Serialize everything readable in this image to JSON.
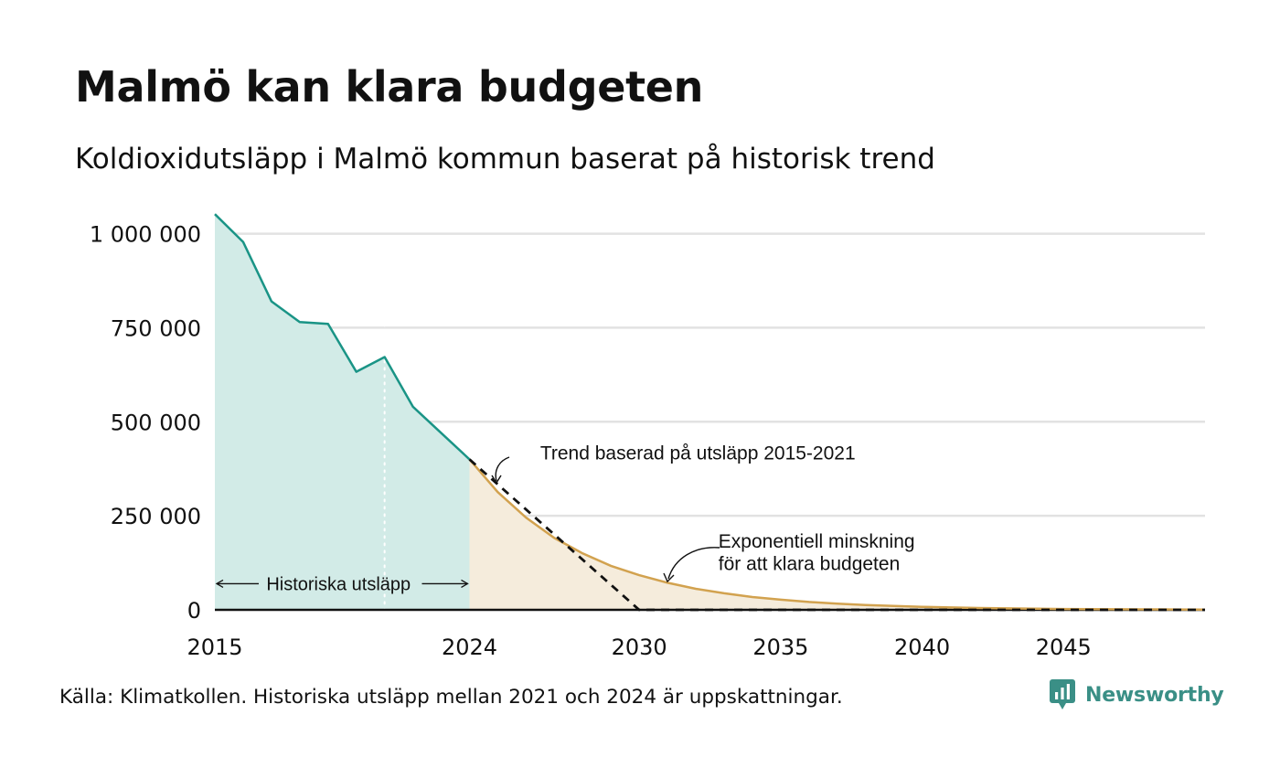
{
  "title": "Malmö kan klara budgeten",
  "subtitle": "Koldioxidutsläpp i Malmö kommun baserat på historisk trend",
  "source": "Källa: Klimatkollen. Historiska utsläpp mellan 2021 och 2024 är uppskattningar.",
  "brand": {
    "name": "Newsworthy",
    "icon": "newsworthy-logo-icon",
    "color": "#3a8f86"
  },
  "colors": {
    "historical_line": "#1a9486",
    "historical_fill": "#d2ebe7",
    "forecast_line": "#d2a24f",
    "forecast_fill": "#f5ecdc",
    "trend_line": "#111111",
    "grid": "#e2e2e2"
  },
  "chart_data": {
    "type": "area",
    "xlim": [
      2015,
      2050
    ],
    "ylim": [
      0,
      1050000
    ],
    "grid": true,
    "x_ticks": [
      {
        "value": 2015,
        "label": "2015"
      },
      {
        "value": 2024,
        "label": "2024"
      },
      {
        "value": 2030,
        "label": "2030"
      },
      {
        "value": 2035,
        "label": "2035"
      },
      {
        "value": 2040,
        "label": "2040"
      },
      {
        "value": 2045,
        "label": "2045"
      }
    ],
    "y_ticks": [
      {
        "value": 0,
        "label": "0"
      },
      {
        "value": 250000,
        "label": "250 000"
      },
      {
        "value": 500000,
        "label": "500 000"
      },
      {
        "value": 750000,
        "label": "750 000"
      },
      {
        "value": 1000000,
        "label": "1 000 000"
      }
    ],
    "series": [
      {
        "x": [
          2015,
          2016,
          2017,
          2018,
          2019,
          2020,
          2021,
          2022,
          2023,
          2024
        ],
        "y": [
          1052000,
          978000,
          820000,
          765000,
          760000,
          633000,
          672000,
          540000,
          470000,
          400000
        ]
      },
      {
        "x": [
          2024,
          2025,
          2026,
          2027,
          2028,
          2029,
          2030,
          2031,
          2032,
          2033,
          2034,
          2035,
          2036,
          2037,
          2038,
          2039,
          2040,
          2041,
          2042,
          2043,
          2044,
          2045,
          2046,
          2047,
          2048,
          2049,
          2050
        ],
        "y": [
          400000,
          313000,
          245000,
          191000,
          150000,
          117000,
          92000,
          72000,
          56000,
          44000,
          34000,
          27000,
          21000,
          16500,
          12900,
          10100,
          7900,
          6200,
          4800,
          3800,
          3000,
          2300,
          1800,
          1400,
          1100,
          900,
          700
        ]
      },
      {
        "x": [
          2024,
          2030,
          2050
        ],
        "y": [
          400000,
          0,
          0
        ]
      }
    ],
    "marker_line_x": 2021,
    "annotations": [
      {
        "text": "Historiska utsläpp",
        "x_from": 2015,
        "x_to": 2024,
        "y": 50000
      },
      {
        "text": "Trend baserad på utsläpp 2015-2021",
        "x": 2026.5,
        "y": 405000
      },
      {
        "text": "Exponentiell minskning",
        "x": 2032.8,
        "y": 182000
      },
      {
        "text": "för att klara budgeten",
        "x": 2032.8,
        "y": 125000
      }
    ]
  }
}
